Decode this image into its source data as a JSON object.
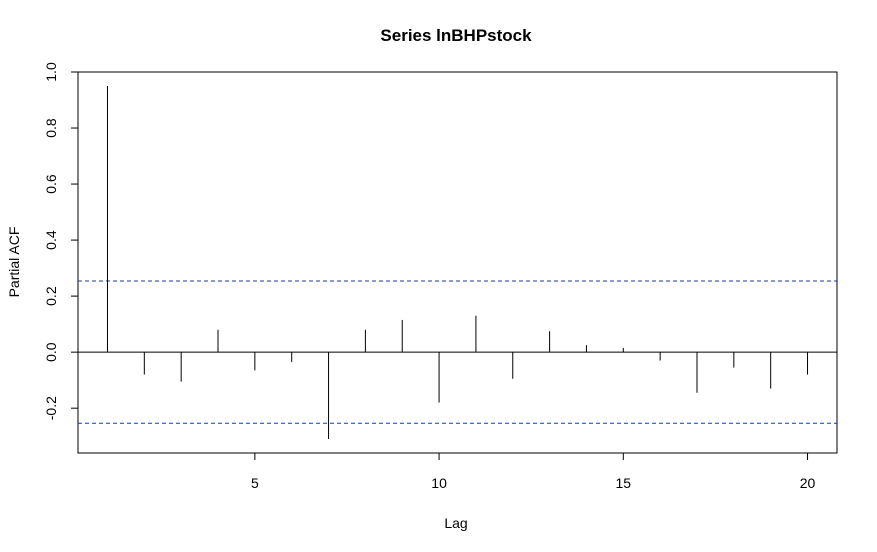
{
  "chart_data": {
    "type": "bar",
    "title": "Series  lnBHPstock",
    "xlabel": "Lag",
    "ylabel": "Partial ACF",
    "xlim": [
      0.2,
      20.8
    ],
    "ylim": [
      -0.36,
      1.0
    ],
    "x_ticks": [
      5,
      10,
      15,
      20
    ],
    "x_tick_labels": [
      "5",
      "10",
      "15",
      "20"
    ],
    "y_ticks": [
      -0.2,
      0.0,
      0.2,
      0.4,
      0.6,
      0.8,
      1.0
    ],
    "y_tick_labels": [
      "-0.2",
      "0.0",
      "0.2",
      "0.4",
      "0.6",
      "0.8",
      "1.0"
    ],
    "lags": [
      1,
      2,
      3,
      4,
      5,
      6,
      7,
      8,
      9,
      10,
      11,
      12,
      13,
      14,
      15,
      16,
      17,
      18,
      19,
      20
    ],
    "values": [
      0.95,
      -0.08,
      -0.105,
      0.08,
      -0.065,
      -0.035,
      -0.31,
      0.08,
      0.115,
      -0.18,
      0.13,
      -0.095,
      0.075,
      0.025,
      0.015,
      -0.03,
      -0.145,
      -0.055,
      -0.13,
      -0.08
    ],
    "confidence_limits": [
      0.254,
      -0.254
    ],
    "grid": false,
    "legend": "none"
  }
}
